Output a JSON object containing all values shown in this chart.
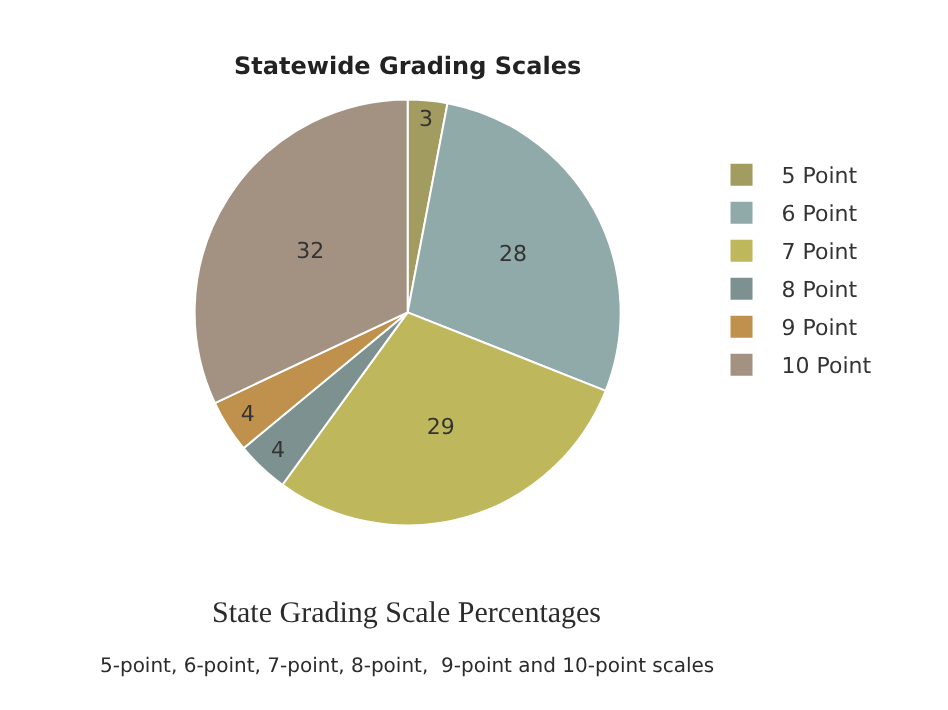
{
  "chart_data": {
    "type": "pie",
    "title": "Statewide Grading Scales",
    "categories": [
      "5 Point",
      "6 Point",
      "7 Point",
      "8 Point",
      "9 Point",
      "10 Point"
    ],
    "values": [
      3,
      28,
      29,
      4,
      4,
      32
    ],
    "colors": [
      "#a39c60",
      "#8faaa8",
      "#bfb75c",
      "#7e9191",
      "#c0914c",
      "#a39282"
    ],
    "data_labels": true,
    "legend": "right",
    "annotations": [
      "State Grading Scale Percentages",
      "5-point, 6-point, 7-point, 8-point,  9-point and 10-point scales"
    ]
  }
}
